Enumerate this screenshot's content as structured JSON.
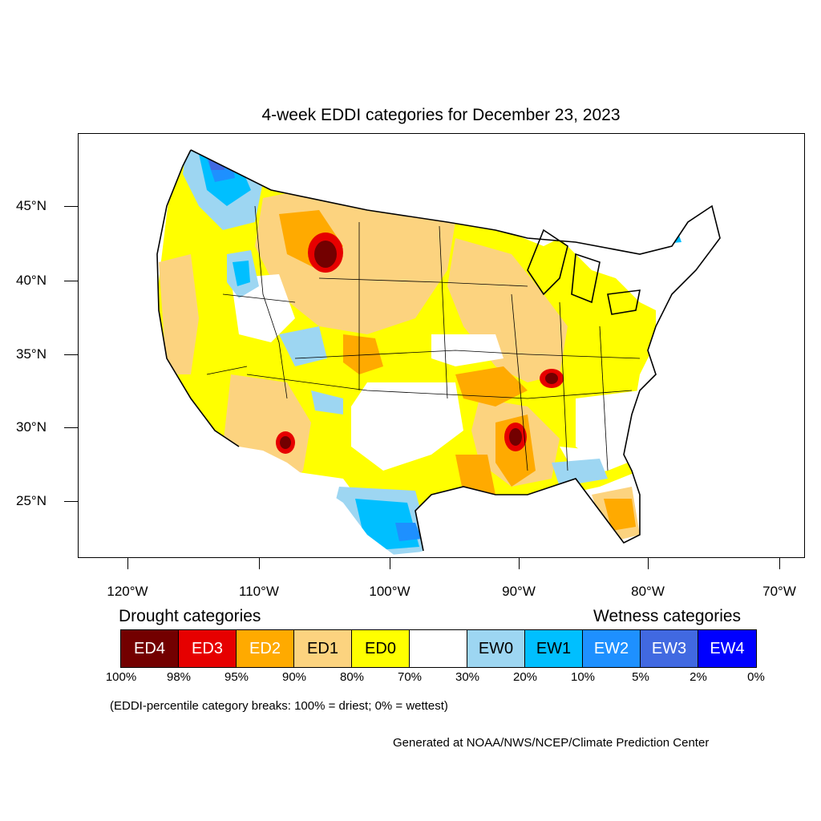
{
  "title": "4-week EDDI categories for December 23, 2023",
  "latitude_labels": [
    "45°N",
    "40°N",
    "35°N",
    "30°N",
    "25°N"
  ],
  "longitude_labels": [
    "120°W",
    "110°W",
    "100°W",
    "90°W",
    "80°W",
    "70°W"
  ],
  "drought_heading": "Drought categories",
  "wetness_heading": "Wetness categories",
  "legend": [
    {
      "label": "ED4",
      "color": "#730000",
      "text_color": "#ffffff"
    },
    {
      "label": "ED3",
      "color": "#e60000",
      "text_color": "#ffffff"
    },
    {
      "label": "ED2",
      "color": "#ffaa00",
      "text_color": "#ffffff"
    },
    {
      "label": "ED1",
      "color": "#fcd37f",
      "text_color": "#000000"
    },
    {
      "label": "ED0",
      "color": "#ffff00",
      "text_color": "#000000"
    },
    {
      "label": "",
      "color": "#ffffff",
      "text_color": "#000000"
    },
    {
      "label": "EW0",
      "color": "#9dd6f2",
      "text_color": "#000000"
    },
    {
      "label": "EW1",
      "color": "#00bfff",
      "text_color": "#000000"
    },
    {
      "label": "EW2",
      "color": "#1e90ff",
      "text_color": "#ffffff"
    },
    {
      "label": "EW3",
      "color": "#4169e1",
      "text_color": "#ffffff"
    },
    {
      "label": "EW4",
      "color": "#0000ff",
      "text_color": "#ffffff"
    }
  ],
  "percentiles": [
    "100%",
    "98%",
    "95%",
    "90%",
    "80%",
    "70%",
    "30%",
    "20%",
    "10%",
    "5%",
    "2%",
    "0%"
  ],
  "note": "(EDDI-percentile category breaks: 100% = driest; 0% = wettest)",
  "credit": "Generated at NOAA/NWS/NCEP/Climate Prediction Center"
}
